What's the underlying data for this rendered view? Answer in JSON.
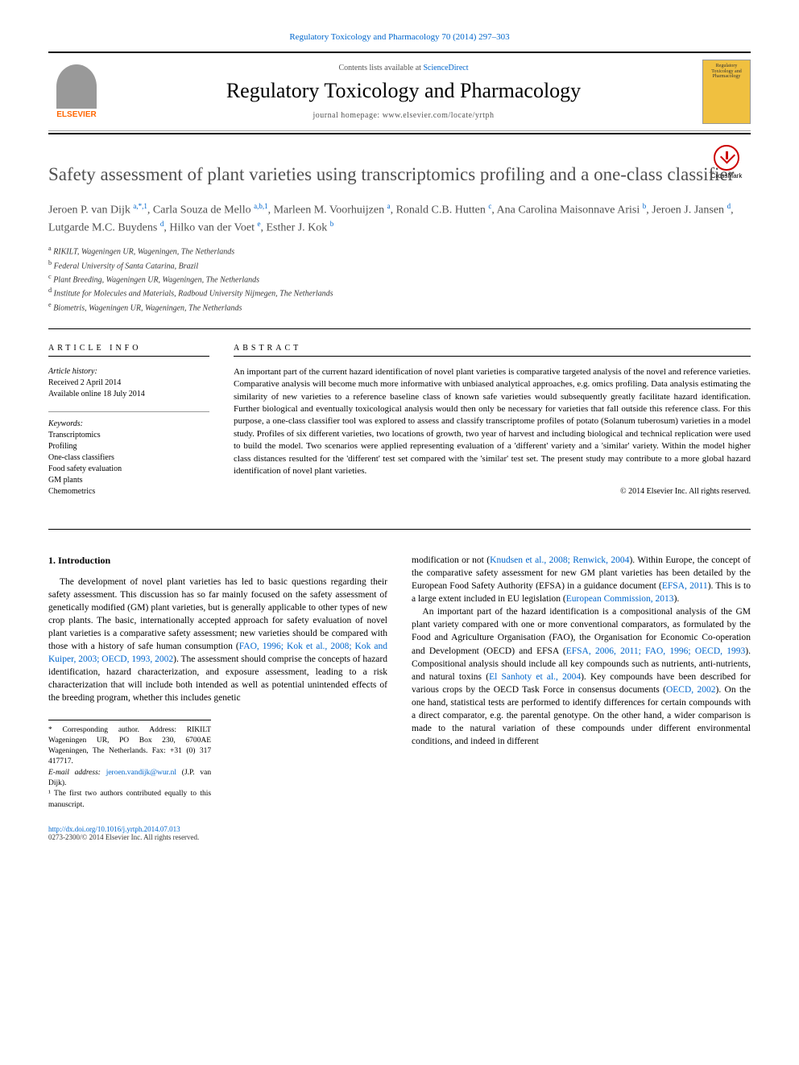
{
  "header": {
    "citation": "Regulatory Toxicology and Pharmacology 70 (2014) 297–303",
    "contents_prefix": "Contents lists available at ",
    "contents_link": "ScienceDirect",
    "journal_name": "Regulatory Toxicology and Pharmacology",
    "homepage_prefix": "journal homepage: ",
    "homepage_url": "www.elsevier.com/locate/yrtph",
    "elsevier_label": "ELSEVIER",
    "cover_text": "Regulatory Toxicology and Pharmacology"
  },
  "crossmark": "CrossMark",
  "article": {
    "title": "Safety assessment of plant varieties using transcriptomics profiling and a one-class classifier",
    "authors_html": "Jeroen P. van Dijk <sup>a,*,1</sup>, Carla Souza de Mello <sup>a,b,1</sup>, Marleen M. Voorhuijzen <sup>a</sup>, Ronald C.B. Hutten <sup>c</sup>, Ana Carolina Maisonnave Arisi <sup>b</sup>, Jeroen J. Jansen <sup>d</sup>, Lutgarde M.C. Buydens <sup>d</sup>, Hilko van der Voet <sup>e</sup>, Esther J. Kok <sup>b</sup>",
    "affiliations": [
      {
        "sup": "a",
        "text": "RIKILT, Wageningen UR, Wageningen, The Netherlands"
      },
      {
        "sup": "b",
        "text": "Federal University of Santa Catarina, Brazil"
      },
      {
        "sup": "c",
        "text": "Plant Breeding, Wageningen UR, Wageningen, The Netherlands"
      },
      {
        "sup": "d",
        "text": "Institute for Molecules and Materials, Radboud University Nijmegen, The Netherlands"
      },
      {
        "sup": "e",
        "text": "Biometris, Wageningen UR, Wageningen, The Netherlands"
      }
    ]
  },
  "info": {
    "label": "ARTICLE INFO",
    "history_heading": "Article history:",
    "history": [
      "Received 2 April 2014",
      "Available online 18 July 2014"
    ],
    "keywords_heading": "Keywords:",
    "keywords": [
      "Transcriptomics",
      "Profiling",
      "One-class classifiers",
      "Food safety evaluation",
      "GM plants",
      "Chemometrics"
    ]
  },
  "abstract": {
    "label": "ABSTRACT",
    "text": "An important part of the current hazard identification of novel plant varieties is comparative targeted analysis of the novel and reference varieties. Comparative analysis will become much more informative with unbiased analytical approaches, e.g. omics profiling. Data analysis estimating the similarity of new varieties to a reference baseline class of known safe varieties would subsequently greatly facilitate hazard identification. Further biological and eventually toxicological analysis would then only be necessary for varieties that fall outside this reference class. For this purpose, a one-class classifier tool was explored to assess and classify transcriptome profiles of potato (Solanum tuberosum) varieties in a model study. Profiles of six different varieties, two locations of growth, two year of harvest and including biological and technical replication were used to build the model. Two scenarios were applied representing evaluation of a 'different' variety and a 'similar' variety. Within the model higher class distances resulted for the 'different' test set compared with the 'similar' test set. The present study may contribute to a more global hazard identification of novel plant varieties.",
    "copyright": "© 2014 Elsevier Inc. All rights reserved."
  },
  "body": {
    "section_number": "1.",
    "section_title": "Introduction",
    "col1_html": "The development of novel plant varieties has led to basic questions regarding their safety assessment. This discussion has so far mainly focused on the safety assessment of genetically modified (GM) plant varieties, but is generally applicable to other types of new crop plants. The basic, internationally accepted approach for safety evaluation of novel plant varieties is a comparative safety assessment; new varieties should be compared with those with a history of safe human consumption (<a>FAO, 1996; Kok et al., 2008; Kok and Kuiper, 2003; OECD, 1993, 2002</a>). The assessment should comprise the concepts of hazard identification, hazard characterization, and exposure assessment, leading to a risk characterization that will include both intended as well as potential unintended effects of the breeding program, whether this includes genetic",
    "col2_html": "modification or not (<a>Knudsen et al., 2008; Renwick, 2004</a>). Within Europe, the concept of the comparative safety assessment for new GM plant varieties has been detailed by the European Food Safety Authority (EFSA) in a guidance document (<a>EFSA, 2011</a>). This is to a large extent included in EU legislation (<a>European Commission, 2013</a>).<br>&nbsp;&nbsp;&nbsp;An important part of the hazard identification is a compositional analysis of the GM plant variety compared with one or more conventional comparators, as formulated by the Food and Agriculture Organisation (FAO), the Organisation for Economic Co-operation and Development (OECD) and EFSA (<a>EFSA, 2006, 2011; FAO, 1996; OECD, 1993</a>). Compositional analysis should include all key compounds such as nutrients, anti-nutrients, and natural toxins (<a>El Sanhoty et al., 2004</a>). Key compounds have been described for various crops by the OECD Task Force in consensus documents (<a>OECD, 2002</a>). On the one hand, statistical tests are performed to identify differences for certain compounds with a direct comparator, e.g. the parental genotype. On the other hand, a wider comparison is made to the natural variation of these compounds under different environmental conditions, and indeed in different"
  },
  "footnotes": {
    "corr": "* Corresponding author. Address: RIKILT Wageningen UR, PO Box 230, 6700AE Wageningen, The Netherlands. Fax: +31 (0) 317 417717.",
    "email_label": "E-mail address: ",
    "email": "jeroen.vandijk@wur.nl",
    "email_name": " (J.P. van Dijk).",
    "note1": "¹ The first two authors contributed equally to this manuscript."
  },
  "footer": {
    "doi": "http://dx.doi.org/10.1016/j.yrtph.2014.07.013",
    "issn": "0273-2300/© 2014 Elsevier Inc. All rights reserved."
  },
  "colors": {
    "link": "#0066cc",
    "orange": "#ff6600",
    "text_gray": "#505050"
  }
}
